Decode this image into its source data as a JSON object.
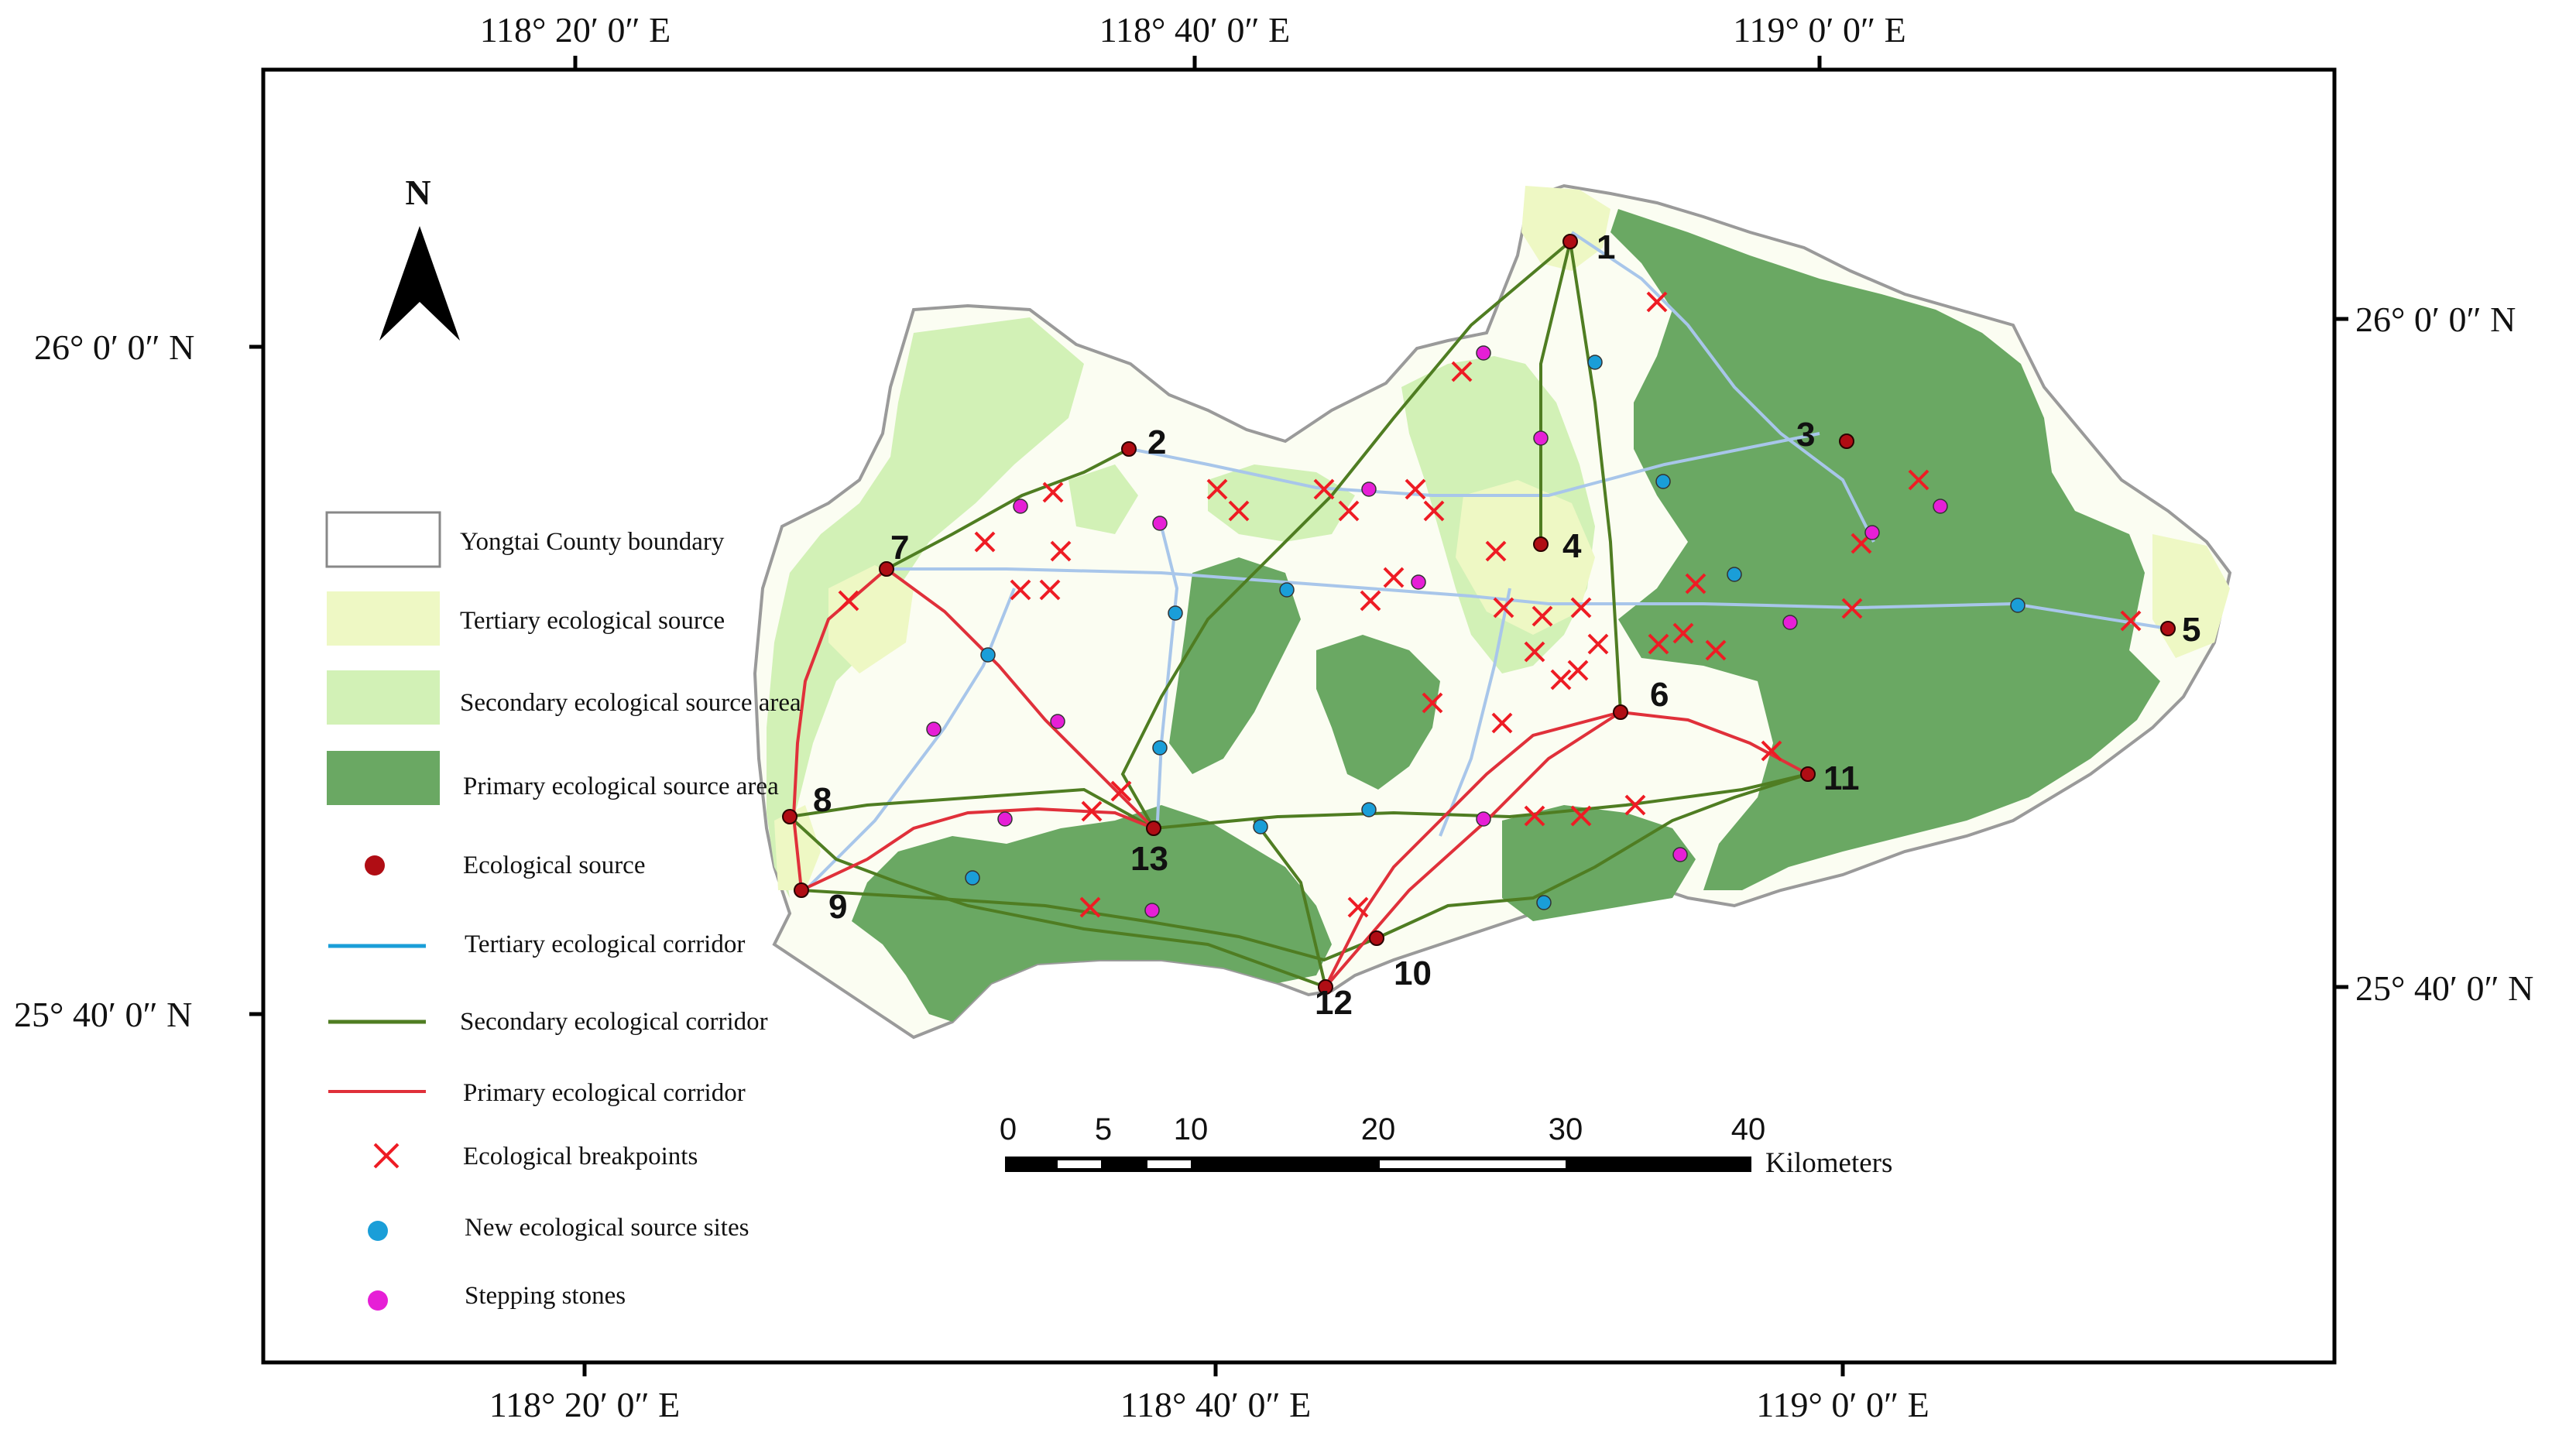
{
  "graticule": {
    "top_labels": [
      "118°  20′ 0″ E",
      "118°  40′ 0″ E",
      "119°  0′ 0″ E"
    ],
    "bottom_labels": [
      "118°  20′ 0″ E",
      "118°  40′ 0″ E",
      "119°  0′ 0″ E"
    ],
    "left_labels": [
      "26°  0′ 0″ N",
      "25°  40′ 0″ N"
    ],
    "right_labels": [
      "26°  0′ 0″ N",
      "25°  40′ 0″ N"
    ]
  },
  "north_arrow": {
    "label": "N"
  },
  "legend": [
    {
      "key": "boundary",
      "label": "Yongtai County boundary"
    },
    {
      "key": "tertiary_source",
      "label": "Tertiary ecological source"
    },
    {
      "key": "secondary_source",
      "label": "Secondary ecological source area"
    },
    {
      "key": "primary_source",
      "label": "Primary ecological source area"
    },
    {
      "key": "ecological_source",
      "label": "Ecological source"
    },
    {
      "key": "tertiary_corridor",
      "label": "Tertiary ecological corridor"
    },
    {
      "key": "secondary_corridor",
      "label": "Secondary ecological corridor"
    },
    {
      "key": "primary_corridor",
      "label": "Primary  ecological corridor"
    },
    {
      "key": "breakpoints",
      "label": "Ecological breakpoints"
    },
    {
      "key": "new_sites",
      "label": "New ecological source sites"
    },
    {
      "key": "stepping_stones",
      "label": "Stepping stones"
    }
  ],
  "scale_bar": {
    "ticks": [
      "0",
      "5",
      "10",
      "20",
      "30",
      "40"
    ],
    "unit": "Kilometers"
  },
  "sources": [
    "1",
    "2",
    "3",
    "4",
    "5",
    "6",
    "7",
    "8",
    "9",
    "10",
    "11",
    "12",
    "13"
  ],
  "colors": {
    "boundary": "#9a9a9a",
    "tertiary_source": "#eef8c4",
    "secondary_source": "#d2f1b6",
    "primary_source": "#6aa863",
    "ecological_source": "#b00d14",
    "tertiary_corridor": "#a8c6ea",
    "secondary_corridor": "#4f7d22",
    "primary_corridor": "#e0303a",
    "breakpoint": "#ee1c24",
    "new_site": "#1a9ed8",
    "stepping_stone": "#e61fd6"
  }
}
